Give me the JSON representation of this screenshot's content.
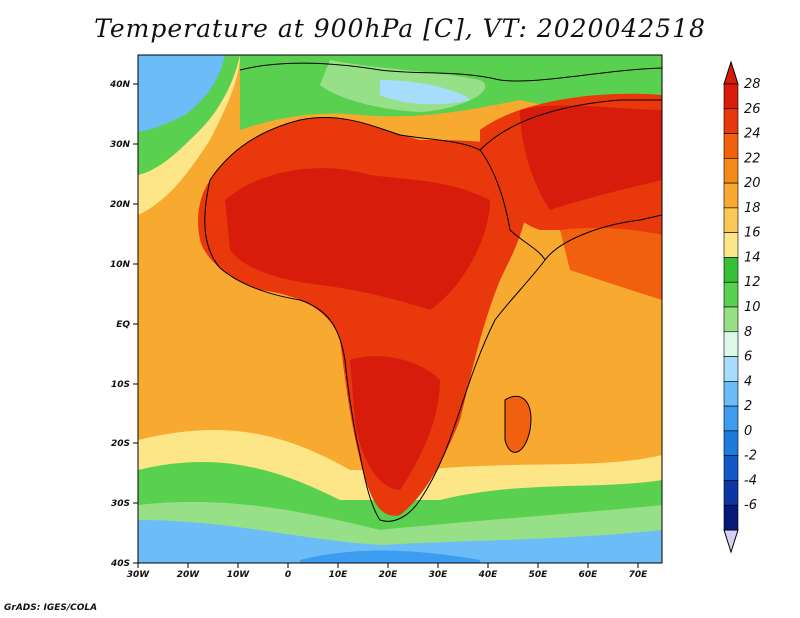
{
  "title": "Temperature at 900hPa [C], VT: 2020042518",
  "credit": "GrADS: IGES/COLA",
  "axes": {
    "lon_labels": [
      "30W",
      "20W",
      "10W",
      "0",
      "10E",
      "20E",
      "30E",
      "40E",
      "50E",
      "60E",
      "70E"
    ],
    "lat_labels": [
      "40N",
      "30N",
      "20N",
      "10N",
      "EQ",
      "10S",
      "20S",
      "30S",
      "40S"
    ]
  },
  "colorbar": {
    "levels": [
      "28",
      "26",
      "24",
      "22",
      "20",
      "18",
      "16",
      "14",
      "12",
      "10",
      "8",
      "6",
      "4",
      "2",
      "0",
      "-2",
      "-4",
      "-6"
    ],
    "colors": [
      "#d81c0c",
      "#e8380c",
      "#f0600e",
      "#f68a18",
      "#f8aa30",
      "#fbc858",
      "#fce688",
      "#36c038",
      "#5ad050",
      "#98e088",
      "#dcf8e8",
      "#a8dcfc",
      "#6cbcf8",
      "#3c9cf0",
      "#1c7cdc",
      "#1458c8",
      "#0c36a4",
      "#061878"
    ]
  }
}
